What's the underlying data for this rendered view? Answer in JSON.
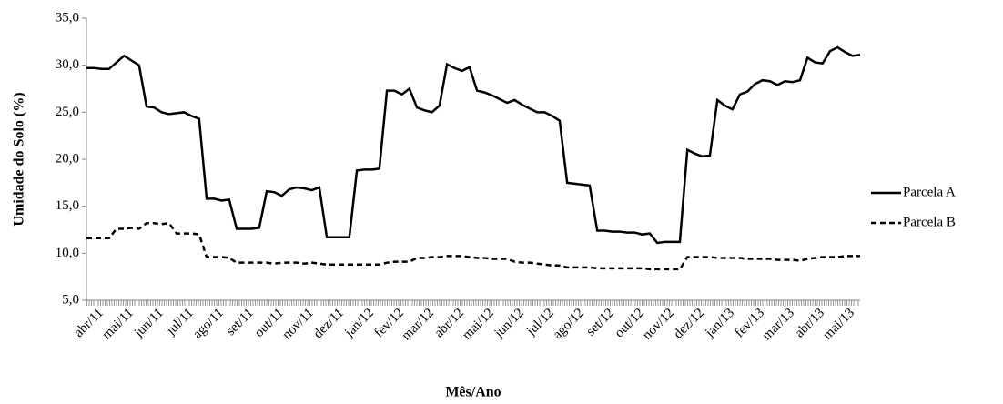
{
  "chart_data": {
    "type": "line",
    "x_label": "Mês/Ano",
    "y_label": "Umidade do Solo (%)",
    "categories": [
      null,
      null,
      "abr/11",
      null,
      null,
      null,
      "mai/11",
      null,
      null,
      null,
      "jun/11",
      null,
      null,
      null,
      "jul/11",
      null,
      null,
      null,
      "ago/11",
      null,
      null,
      null,
      "set/11",
      null,
      null,
      null,
      "out/11",
      null,
      null,
      null,
      "nov/11",
      null,
      null,
      null,
      "dez/11",
      null,
      null,
      null,
      "jan/12",
      null,
      null,
      null,
      "fev/12",
      null,
      null,
      null,
      "mar/12",
      null,
      null,
      null,
      "abr/12",
      null,
      null,
      null,
      "mai/12",
      null,
      null,
      null,
      "jun/12",
      null,
      null,
      null,
      "jul/12",
      null,
      null,
      null,
      "ago/12",
      null,
      null,
      null,
      "set/12",
      null,
      null,
      null,
      "out/12",
      null,
      null,
      null,
      "nov/12",
      null,
      null,
      null,
      "dez/12",
      null,
      null,
      null,
      "jan/13",
      null,
      null,
      null,
      "fev/13",
      null,
      null,
      null,
      "mar/13",
      null,
      null,
      null,
      "abr/13",
      null,
      null,
      null,
      "mai/13",
      null
    ],
    "series": [
      {
        "name": "Parcela A",
        "color": "#000000",
        "line_style": "solid",
        "values": [
          29.7,
          29.7,
          29.6,
          29.6,
          30.3,
          31.0,
          30.5,
          30.0,
          25.6,
          25.5,
          25.0,
          24.8,
          24.9,
          25.0,
          24.6,
          24.3,
          15.8,
          15.8,
          15.6,
          15.7,
          12.6,
          12.6,
          12.6,
          12.7,
          16.6,
          16.5,
          16.1,
          16.8,
          17.0,
          16.9,
          16.7,
          17.0,
          11.7,
          11.7,
          11.7,
          11.7,
          18.8,
          18.9,
          18.9,
          19.0,
          27.3,
          27.3,
          26.9,
          27.5,
          25.5,
          25.2,
          25.0,
          25.7,
          30.1,
          29.7,
          29.4,
          29.8,
          27.3,
          27.1,
          26.8,
          26.4,
          26.0,
          26.3,
          25.8,
          25.4,
          25.0,
          25.0,
          24.6,
          24.1,
          17.5,
          17.4,
          17.3,
          17.2,
          12.4,
          12.4,
          12.3,
          12.3,
          12.2,
          12.2,
          12.0,
          12.1,
          11.1,
          11.2,
          11.2,
          11.2,
          21.0,
          20.6,
          20.3,
          20.4,
          26.3,
          25.7,
          25.3,
          26.9,
          27.2,
          28.0,
          28.4,
          28.3,
          27.9,
          28.3,
          28.2,
          28.4,
          30.8,
          30.3,
          30.2,
          31.5,
          31.9,
          31.4,
          31.0,
          31.1
        ]
      },
      {
        "name": "Parcela B",
        "color": "#000000",
        "line_style": "dashed",
        "values": [
          11.6,
          11.6,
          11.6,
          11.6,
          12.6,
          12.6,
          12.7,
          12.6,
          13.2,
          13.2,
          13.1,
          13.2,
          12.1,
          12.1,
          12.1,
          12.0,
          9.6,
          9.6,
          9.6,
          9.5,
          9.0,
          9.0,
          9.0,
          9.0,
          9.0,
          8.9,
          9.0,
          9.0,
          9.0,
          8.9,
          9.0,
          8.9,
          8.8,
          8.8,
          8.8,
          8.8,
          8.8,
          8.8,
          8.8,
          8.8,
          9.0,
          9.1,
          9.1,
          9.1,
          9.5,
          9.5,
          9.6,
          9.6,
          9.7,
          9.7,
          9.7,
          9.6,
          9.5,
          9.5,
          9.4,
          9.4,
          9.4,
          9.1,
          9.0,
          9.0,
          8.9,
          8.8,
          8.7,
          8.7,
          8.5,
          8.5,
          8.5,
          8.5,
          8.4,
          8.4,
          8.4,
          8.4,
          8.4,
          8.4,
          8.4,
          8.3,
          8.3,
          8.3,
          8.3,
          8.3,
          9.6,
          9.6,
          9.6,
          9.6,
          9.5,
          9.5,
          9.5,
          9.5,
          9.4,
          9.4,
          9.4,
          9.4,
          9.3,
          9.3,
          9.3,
          9.2,
          9.4,
          9.5,
          9.6,
          9.6,
          9.6,
          9.7,
          9.7,
          9.7
        ]
      }
    ],
    "ylim": [
      5,
      35
    ],
    "yticks": [
      {
        "value": 5,
        "label": "5,0"
      },
      {
        "value": 10,
        "label": "10,0"
      },
      {
        "value": 15,
        "label": "15,0"
      },
      {
        "value": 20,
        "label": "20,0"
      },
      {
        "value": 25,
        "label": "25,0"
      },
      {
        "value": 30,
        "label": "30,0"
      },
      {
        "value": 35,
        "label": "35,0"
      }
    ],
    "grid": false
  }
}
